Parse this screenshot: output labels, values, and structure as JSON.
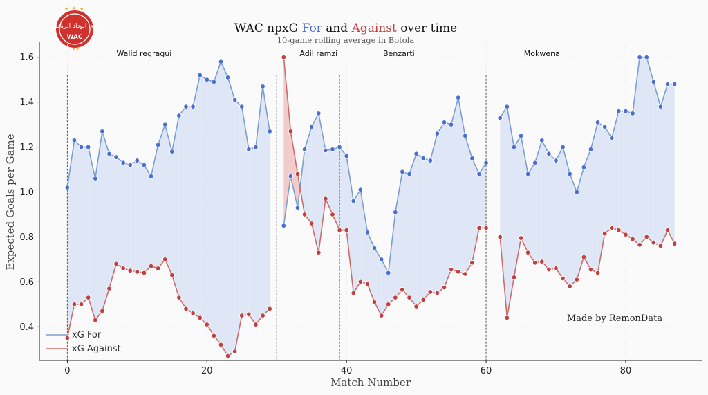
{
  "colors": {
    "for_line": "#7a9fcf",
    "for_marker": "#4b6fd1",
    "against_line": "#cd6b6b",
    "against_marker": "#c0413f",
    "fill_for": "#dbe3f5",
    "fill_against": "#f1c6c6",
    "title_for": "#4a6bd0",
    "title_against": "#c0413f"
  },
  "title": {
    "prefix": "WAC npxG ",
    "for_word": "For",
    "middle": " and ",
    "against_word": "Against",
    "suffix": " over time"
  },
  "subtitle": "10-game rolling average in Botola",
  "credit": "Made by RemonData",
  "logo": {
    "name": "WAC club crest",
    "text": "نادي الوداد الرياضي",
    "letters": "WAC"
  },
  "chart_data": {
    "type": "line",
    "title": "WAC npxG For and Against over time",
    "subtitle": "10-game rolling average in Botola",
    "xlabel": "Match Number",
    "ylabel": "Expected Goals per Game",
    "xlim": [
      -4,
      91
    ],
    "ylim": [
      0.25,
      1.67
    ],
    "xticks": [
      0,
      20,
      40,
      60,
      80
    ],
    "yticks": [
      0.4,
      0.6,
      0.8,
      1.0,
      1.2,
      1.4,
      1.6
    ],
    "grid": true,
    "legend": "bottom-left",
    "series": [
      {
        "name": "xG For",
        "segments": [
          {
            "x": [
              0,
              1,
              2,
              3,
              4,
              5,
              6,
              7,
              8,
              9,
              10,
              11,
              12,
              13,
              14,
              15,
              16,
              17,
              18,
              19,
              20,
              21,
              22,
              23,
              24,
              25,
              26,
              27,
              28,
              29
            ],
            "y": [
              1.02,
              1.23,
              1.2,
              1.2,
              1.06,
              1.27,
              1.17,
              1.155,
              1.13,
              1.12,
              1.14,
              1.12,
              1.07,
              1.21,
              1.3,
              1.18,
              1.34,
              1.38,
              1.38,
              1.52,
              1.5,
              1.49,
              1.58,
              1.51,
              1.41,
              1.38,
              1.19,
              1.2,
              1.47,
              1.27
            ]
          },
          {
            "x": [
              31,
              32,
              33,
              34,
              35,
              36,
              37,
              38,
              39,
              40,
              41,
              42,
              43,
              44,
              45,
              46,
              47,
              48,
              49,
              50,
              51,
              52,
              53,
              54,
              55,
              56,
              57,
              58,
              59,
              60
            ],
            "y": [
              0.85,
              1.07,
              0.93,
              1.19,
              1.29,
              1.35,
              1.185,
              1.19,
              1.2,
              1.16,
              0.96,
              1.01,
              0.82,
              0.75,
              0.7,
              0.64,
              0.91,
              1.09,
              1.08,
              1.17,
              1.15,
              1.14,
              1.26,
              1.31,
              1.3,
              1.42,
              1.25,
              1.15,
              1.08,
              1.13
            ]
          },
          {
            "x": [
              62,
              63,
              64,
              65,
              66,
              67,
              68,
              69,
              70,
              71,
              72,
              73,
              74,
              75,
              76,
              77,
              78,
              79,
              80,
              81,
              82,
              83,
              84,
              85,
              86,
              87
            ],
            "y": [
              1.33,
              1.38,
              1.2,
              1.25,
              1.08,
              1.13,
              1.23,
              1.17,
              1.14,
              1.2,
              1.08,
              1.0,
              1.11,
              1.19,
              1.31,
              1.29,
              1.24,
              1.36,
              1.36,
              1.35,
              1.6,
              1.6,
              1.49,
              1.38,
              1.48,
              1.48
            ]
          }
        ]
      },
      {
        "name": "xG Against",
        "segments": [
          {
            "x": [
              0,
              1,
              2,
              3,
              4,
              5,
              6,
              7,
              8,
              9,
              10,
              11,
              12,
              13,
              14,
              15,
              16,
              17,
              18,
              19,
              20,
              21,
              22,
              23,
              24,
              25,
              26,
              27,
              28,
              29
            ],
            "y": [
              0.35,
              0.5,
              0.5,
              0.53,
              0.43,
              0.47,
              0.57,
              0.68,
              0.66,
              0.65,
              0.645,
              0.64,
              0.67,
              0.66,
              0.7,
              0.63,
              0.53,
              0.48,
              0.46,
              0.44,
              0.41,
              0.36,
              0.32,
              0.27,
              0.29,
              0.45,
              0.455,
              0.41,
              0.45,
              0.48
            ]
          },
          {
            "x": [
              31,
              32,
              33,
              34,
              35,
              36,
              37,
              38,
              39,
              40,
              41,
              42,
              43,
              44,
              45,
              46,
              47,
              48,
              49,
              50,
              51,
              52,
              53,
              54,
              55,
              56,
              57,
              58,
              59,
              60
            ],
            "y": [
              1.6,
              1.27,
              1.08,
              0.9,
              0.86,
              0.73,
              0.97,
              0.9,
              0.83,
              0.83,
              0.55,
              0.6,
              0.59,
              0.51,
              0.45,
              0.5,
              0.53,
              0.565,
              0.53,
              0.49,
              0.52,
              0.555,
              0.55,
              0.575,
              0.655,
              0.645,
              0.635,
              0.685,
              0.84,
              0.84
            ]
          },
          {
            "x": [
              62,
              63,
              64,
              65,
              66,
              67,
              68,
              69,
              70,
              71,
              72,
              73,
              74,
              75,
              76,
              77,
              78,
              79,
              80,
              81,
              82,
              83,
              84,
              85,
              86,
              87
            ],
            "y": [
              0.8,
              0.44,
              0.62,
              0.795,
              0.73,
              0.685,
              0.69,
              0.655,
              0.66,
              0.615,
              0.58,
              0.61,
              0.71,
              0.655,
              0.64,
              0.815,
              0.84,
              0.83,
              0.81,
              0.79,
              0.765,
              0.8,
              0.775,
              0.76,
              0.83,
              0.77
            ]
          }
        ]
      }
    ],
    "manager_changes": [
      0,
      30,
      39,
      60
    ],
    "annotations": [
      {
        "text": "Walid regragui",
        "x": 11
      },
      {
        "text": "Adil ramzi",
        "x": 36
      },
      {
        "text": "Benzarti",
        "x": 47.5
      },
      {
        "text": "Mokwena",
        "x": 68
      }
    ]
  }
}
